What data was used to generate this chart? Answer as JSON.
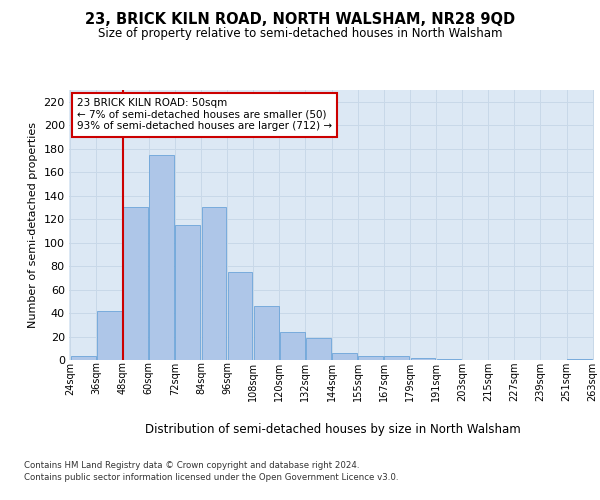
{
  "title": "23, BRICK KILN ROAD, NORTH WALSHAM, NR28 9QD",
  "subtitle": "Size of property relative to semi-detached houses in North Walsham",
  "xlabel": "Distribution of semi-detached houses by size in North Walsham",
  "ylabel": "Number of semi-detached properties",
  "bar_values": [
    3,
    42,
    130,
    175,
    115,
    130,
    75,
    46,
    24,
    19,
    6,
    3,
    3,
    2,
    1,
    0,
    0,
    0,
    0,
    1
  ],
  "bin_labels": [
    "24sqm",
    "36sqm",
    "48sqm",
    "60sqm",
    "72sqm",
    "84sqm",
    "96sqm",
    "108sqm",
    "120sqm",
    "132sqm",
    "144sqm",
    "155sqm",
    "167sqm",
    "179sqm",
    "191sqm",
    "203sqm",
    "215sqm",
    "227sqm",
    "239sqm",
    "251sqm",
    "263sqm"
  ],
  "bar_color": "#aec6e8",
  "bar_edge_color": "#5b9bd5",
  "property_bin_index": 2,
  "annotation_line1": "23 BRICK KILN ROAD: 50sqm",
  "annotation_line2": "← 7% of semi-detached houses are smaller (50)",
  "annotation_line3": "93% of semi-detached houses are larger (712) →",
  "annotation_box_facecolor": "#ffffff",
  "annotation_box_edgecolor": "#cc0000",
  "red_line_color": "#cc0000",
  "ylim": [
    0,
    230
  ],
  "yticks": [
    0,
    20,
    40,
    60,
    80,
    100,
    120,
    140,
    160,
    180,
    200,
    220
  ],
  "grid_color": "#c8d8e8",
  "axes_bg_color": "#dce8f4",
  "footer_line1": "Contains HM Land Registry data © Crown copyright and database right 2024.",
  "footer_line2": "Contains public sector information licensed under the Open Government Licence v3.0."
}
